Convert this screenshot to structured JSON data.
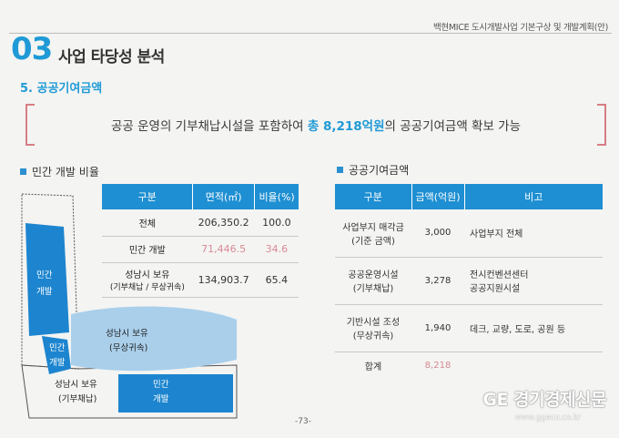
{
  "header": {
    "doc_title": "백현MICE 도시개발사업 기본구상 및 개발계획(안)",
    "section_number": "03",
    "section_title": "사업 타당성 분석",
    "subsection": "5. 공공기여금액"
  },
  "highlight": {
    "before": "공공 운영의 기부채납시설을 포함하여 ",
    "emphasis": "총 8,218억원",
    "after": "의 공공기여금액 확보 가능"
  },
  "private_ratio": {
    "heading": "민간 개발 비율",
    "columns": [
      "구분",
      "면적(㎡)",
      "비율(%)"
    ],
    "rows": [
      {
        "label": "전체",
        "area": "206,350.2",
        "ratio": "100.0"
      },
      {
        "label": "민간 개발",
        "area": "71,446.5",
        "ratio": "34.6"
      },
      {
        "label": "성남시 보유",
        "label2": "(기부채납 / 무상귀속)",
        "area": "134,903.7",
        "ratio": "65.4"
      }
    ]
  },
  "contribution": {
    "heading": "공공기여금액",
    "columns": [
      "구분",
      "금액(억원)",
      "비고"
    ],
    "rows": [
      {
        "label": "사업부지 매각금",
        "label2": "(기준 금액)",
        "amount": "3,000",
        "note": "사업부지 전체",
        "note2": ""
      },
      {
        "label": "공공운영시설",
        "label2": "(기부채납)",
        "amount": "3,278",
        "note": "전시컨벤션센터",
        "note2": "공공지원시설"
      },
      {
        "label": "기반시설 조성",
        "label2": "(무상귀속)",
        "amount": "1,940",
        "note": "데크, 교량, 도로, 공원 등",
        "note2": ""
      },
      {
        "label": "합계",
        "label2": "",
        "amount": "8,218",
        "note": "",
        "note2": ""
      }
    ]
  },
  "map": {
    "labels": {
      "private1": "민간",
      "private1b": "개발",
      "private2": "민간",
      "private2b": "개발",
      "private3": "민간",
      "private3b": "개발",
      "city1": "성남시 보유",
      "city1b": "(무상귀속)",
      "city2": "성남시 보유",
      "city2b": "(기부채납)"
    },
    "colors": {
      "private": "#1d85cf",
      "city": "#a9cfeb"
    }
  },
  "footer": {
    "page": "-73-",
    "watermark": "GE 경기경제신문",
    "watermark_url": "www.ggeco.co.kr"
  }
}
